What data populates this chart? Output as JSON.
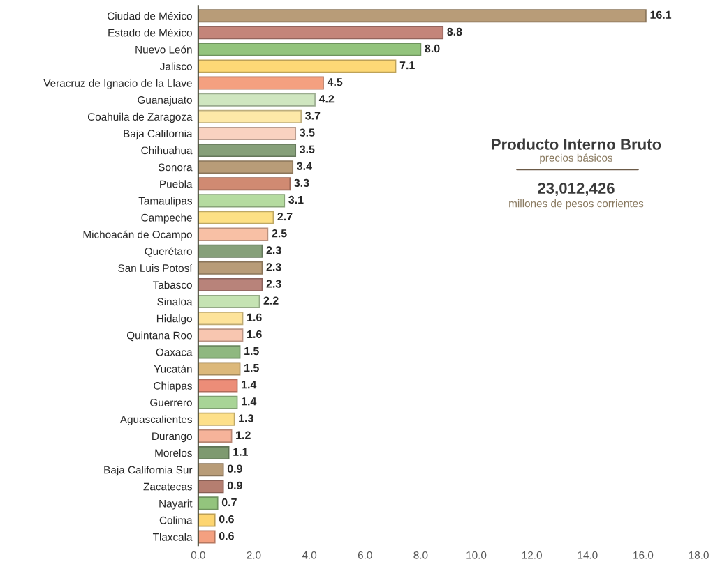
{
  "chart_data": {
    "type": "bar",
    "orientation": "horizontal",
    "categories": [
      "Ciudad de México",
      "Estado de México",
      "Nuevo León",
      "Jalisco",
      "Veracruz de Ignacio de la Llave",
      "Guanajuato",
      "Coahuila de Zaragoza",
      "Baja California",
      "Chihuahua",
      "Sonora",
      "Puebla",
      "Tamaulipas",
      "Campeche",
      "Michoacán de Ocampo",
      "Querétaro",
      "San Luis Potosí",
      "Tabasco",
      "Sinaloa",
      "Hidalgo",
      "Quintana Roo",
      "Oaxaca",
      "Yucatán",
      "Chiapas",
      "Guerrero",
      "Aguascalientes",
      "Durango",
      "Morelos",
      "Baja California Sur",
      "Zacatecas",
      "Nayarit",
      "Colima",
      "Tlaxcala"
    ],
    "values": [
      16.1,
      8.8,
      8.0,
      7.1,
      4.5,
      4.2,
      3.7,
      3.5,
      3.5,
      3.4,
      3.3,
      3.1,
      2.7,
      2.5,
      2.3,
      2.3,
      2.3,
      2.2,
      1.6,
      1.6,
      1.5,
      1.5,
      1.4,
      1.4,
      1.3,
      1.2,
      1.1,
      0.9,
      0.9,
      0.7,
      0.6,
      0.6
    ],
    "value_labels": [
      "16.1",
      "8.8",
      "8.0",
      "7.1",
      "4.5",
      "4.2",
      "3.7",
      "3.5",
      "3.5",
      "3.4",
      "3.3",
      "3.1",
      "2.7",
      "2.5",
      "2.3",
      "2.3",
      "2.3",
      "2.2",
      "1.6",
      "1.6",
      "1.5",
      "1.5",
      "1.4",
      "1.4",
      "1.3",
      "1.2",
      "1.1",
      "0.9",
      "0.9",
      "0.7",
      "0.6",
      "0.6"
    ],
    "colors": [
      "#b89c78",
      "#c4857a",
      "#93c47d",
      "#fdd876",
      "#f4a080",
      "#cfe6c0",
      "#fde8a8",
      "#f9d2c0",
      "#86a07a",
      "#b89c78",
      "#d08a72",
      "#b5dba0",
      "#fde085",
      "#f8c0a5",
      "#86a07a",
      "#b89c78",
      "#b8837a",
      "#c5e3b3",
      "#fde39a",
      "#f8c6b0",
      "#8fb880",
      "#dcb87a",
      "#ec8d78",
      "#a8d496",
      "#fde08a",
      "#f6b39a",
      "#7e9a70",
      "#b89c78",
      "#b57e70",
      "#93c47d",
      "#fdd570",
      "#f4a080"
    ],
    "xlim": [
      0,
      18
    ],
    "xticks": [
      {
        "value": 0,
        "label": "0.0"
      },
      {
        "value": 2,
        "label": "2.0"
      },
      {
        "value": 4,
        "label": "4.0"
      },
      {
        "value": 6,
        "label": "6.0"
      },
      {
        "value": 8,
        "label": "8.0"
      },
      {
        "value": 10,
        "label": "10.0"
      },
      {
        "value": 12,
        "label": "12.0"
      },
      {
        "value": 14,
        "label": "14.0"
      },
      {
        "value": 16,
        "label": "16.0"
      },
      {
        "value": 18,
        "label": "18.0"
      }
    ],
    "annotations": [
      "Producto Interno Bruto",
      "precios básicos",
      "23,012,426",
      "millones de pesos corrientes"
    ],
    "grid": false,
    "legend": false
  }
}
